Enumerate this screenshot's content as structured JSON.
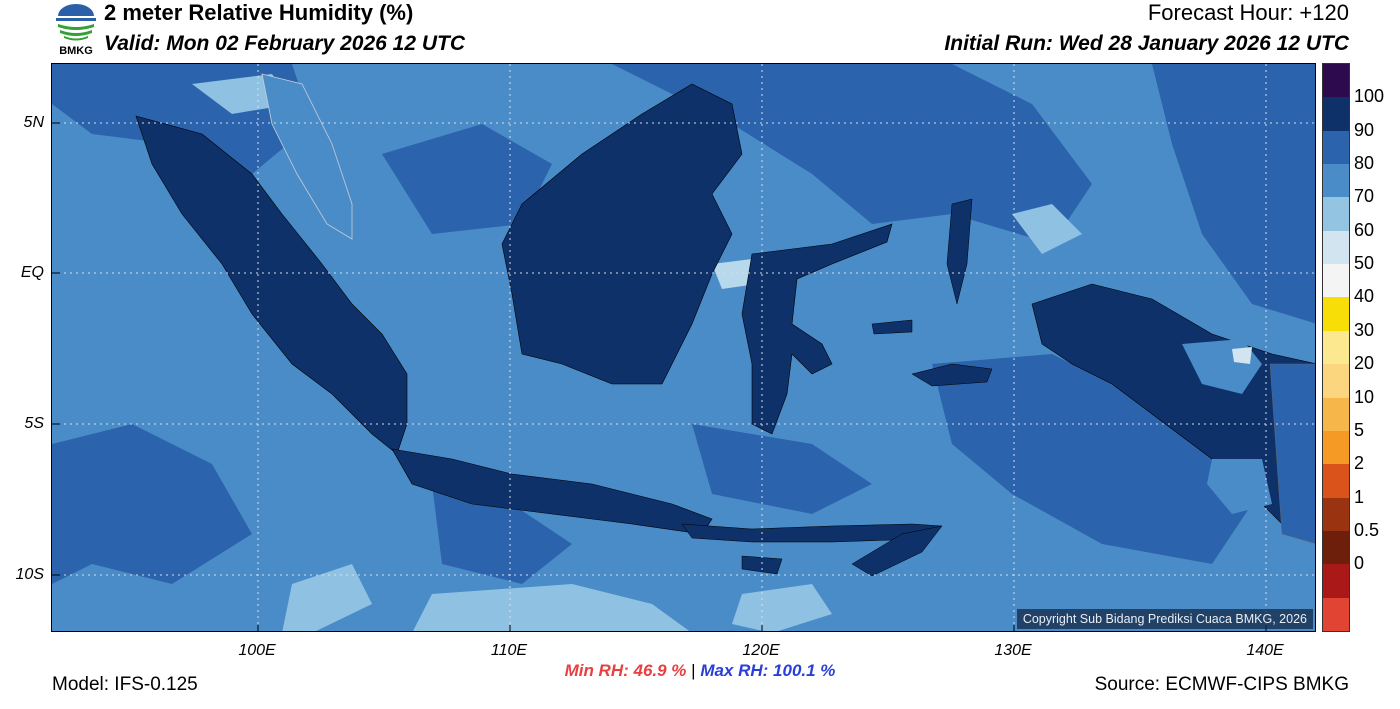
{
  "header": {
    "title": "2 meter Relative Humidity (%)",
    "valid": "Valid: Mon 02 February 2026 12 UTC",
    "forecast_hour": "Forecast Hour: +120",
    "initial_run": "Initial Run: Wed 28 January 2026 12 UTC",
    "logo_text": "BMKG"
  },
  "map": {
    "lat_labels": [
      "5N",
      "EQ",
      "5S",
      "10S"
    ],
    "lon_labels": [
      "100E",
      "110E",
      "120E",
      "130E",
      "140E"
    ],
    "copyright": "Copyright Sub Bidang Prediksi Cuaca BMKG, 2026",
    "colors": {
      "ocean_dominant": "#4a8cc8",
      "ocean_moist": "#2b64ad",
      "land_saturated": "#0d3168",
      "dry_patch": "#8fc2e2",
      "grid": "#d8dde6"
    }
  },
  "colorbar": {
    "labels": [
      "100",
      "90",
      "80",
      "70",
      "60",
      "50",
      "40",
      "30",
      "20",
      "10",
      "5",
      "2",
      "1",
      "0.5",
      "0"
    ],
    "colors": [
      "#2d0a4e",
      "#0d3168",
      "#2b64ad",
      "#4a8cc8",
      "#93c4e2",
      "#d2e4f0",
      "#f4f4f4",
      "#f7de07",
      "#fce98f",
      "#fcd67e",
      "#f7b64a",
      "#f59a24",
      "#d9531a",
      "#9a3310",
      "#6e1f0c",
      "#aa1818",
      "#e24434"
    ]
  },
  "stats": {
    "min_rh": "Min RH:  46.9 %",
    "separator": "|",
    "max_rh": "Max RH: 100.1 %"
  },
  "footer": {
    "model": "Model: IFS-0.125",
    "source": "Source: ECMWF-CIPS BMKG"
  }
}
